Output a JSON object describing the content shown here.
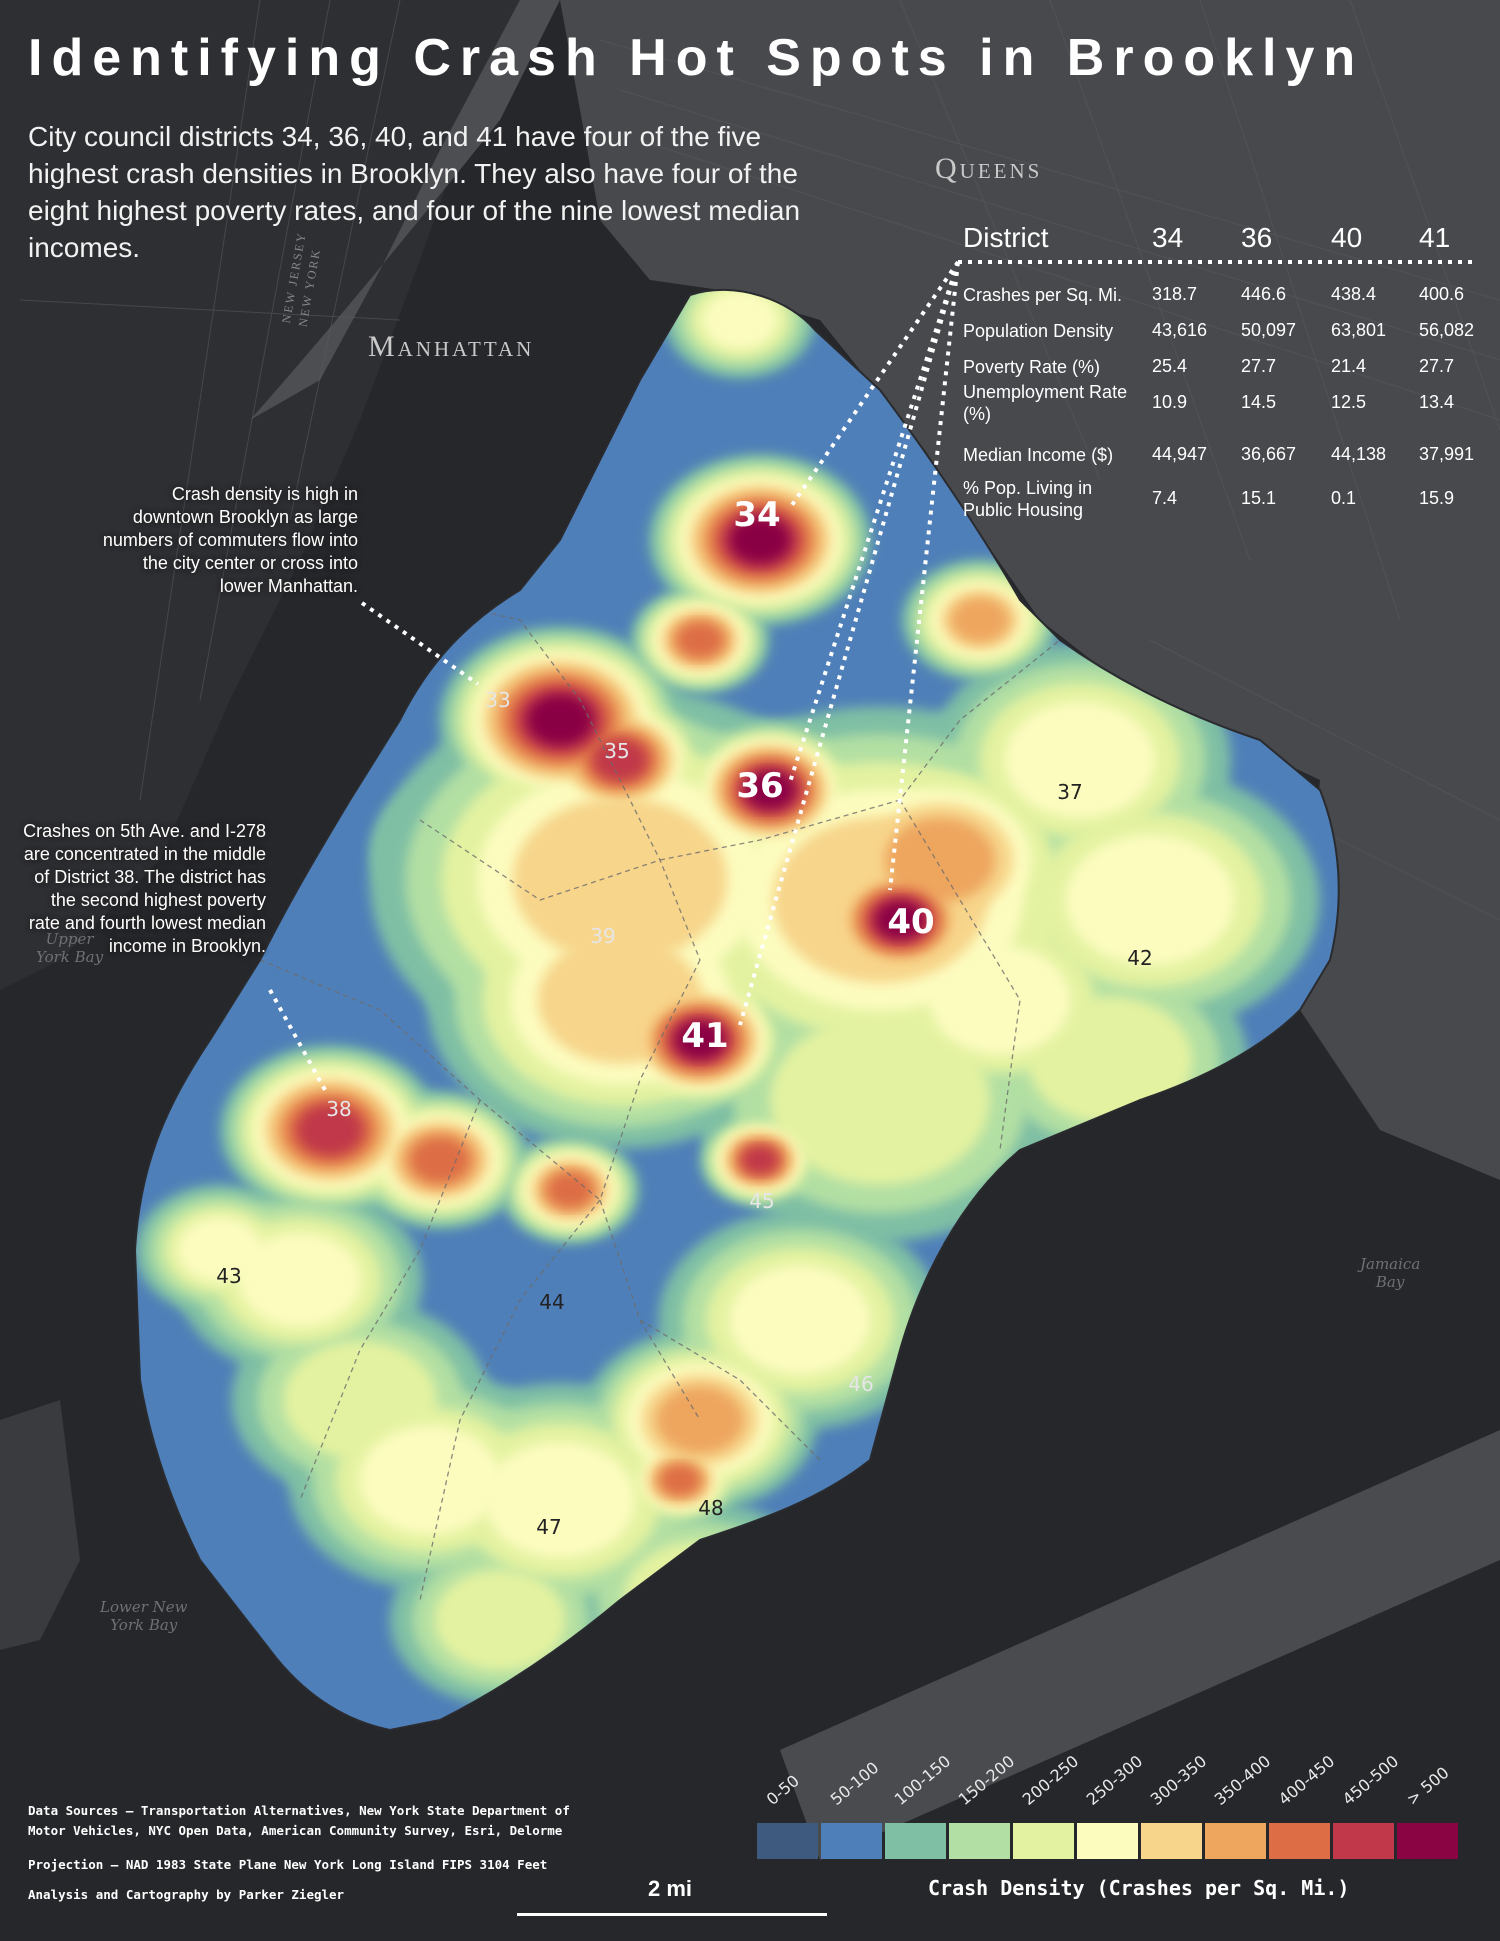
{
  "title": "Identifying Crash Hot Spots in Brooklyn",
  "subtitle": "City council districts 34, 36, 40, and 41 have four of the five highest crash densities in Brooklyn. They also have four of the eight highest poverty rates, and four of the nine lowest median incomes.",
  "places": {
    "queens": "Queens",
    "manhattan": "Manhattan",
    "new_jersey": "NEW JERSEY",
    "new_york": "NEW YORK",
    "upper_bay": "Upper\nYork Bay",
    "lower_bay": "Lower New\nYork Bay",
    "jamaica_bay": "Jamaica\nBay",
    "queens_top": "Queens"
  },
  "annotations": {
    "downtown": "Crash density is high in downtown Brooklyn as large numbers of commuters flow into the city center or cross into lower Manhattan.",
    "district38": "Crashes on 5th Ave. and I-278 are concentrated in the middle of District 38. The district has the second highest poverty rate and fourth lowest median income in Brooklyn."
  },
  "district_labels": {
    "big": [
      "34",
      "36",
      "40",
      "41"
    ],
    "small": [
      "33",
      "35",
      "37",
      "38",
      "39",
      "42",
      "43",
      "44",
      "45",
      "46",
      "47",
      "48"
    ]
  },
  "stats_table": {
    "header": [
      "District",
      "34",
      "36",
      "40",
      "41"
    ],
    "rows": [
      {
        "label": "Crashes per Sq. Mi.",
        "values": [
          "318.7",
          "446.6",
          "438.4",
          "400.6"
        ]
      },
      {
        "label": "Population Density",
        "values": [
          "43,616",
          "50,097",
          "63,801",
          "56,082"
        ]
      },
      {
        "label": "Poverty Rate (%)",
        "values": [
          "25.4",
          "27.7",
          "21.4",
          "27.7"
        ]
      },
      {
        "label": "Unemployment Rate (%)",
        "values": [
          "10.9",
          "14.5",
          "12.5",
          "13.4"
        ]
      },
      {
        "label": "Median Income ($)",
        "values": [
          "44,947",
          "36,667",
          "44,138",
          "37,991"
        ]
      },
      {
        "label": "% Pop. Living in Public Housing",
        "values": [
          "7.4",
          "15.1",
          "0.1",
          "15.9"
        ]
      }
    ]
  },
  "legend": {
    "title": "Crash Density (Crashes per Sq. Mi.)",
    "classes": [
      {
        "label": "0-50",
        "color": "#3e5a7e"
      },
      {
        "label": "50-100",
        "color": "#4f7fb8"
      },
      {
        "label": "100-150",
        "color": "#7fbfa4"
      },
      {
        "label": "150-200",
        "color": "#b2dfa3"
      },
      {
        "label": "200-250",
        "color": "#e3f2a0"
      },
      {
        "label": "250-300",
        "color": "#fcfcbf"
      },
      {
        "label": "300-350",
        "color": "#f7d58b"
      },
      {
        "label": "350-400",
        "color": "#eea65e"
      },
      {
        "label": "400-450",
        "color": "#dd6d45"
      },
      {
        "label": "450-500",
        "color": "#c0384a"
      },
      {
        "label": "> 500",
        "color": "#8a0444"
      }
    ]
  },
  "scale_bar": "2 mi",
  "sources": {
    "data": "Data Sources – Transportation Alternatives, New York State Department of\nMotor Vehicles, NYC Open Data, American Community Survey, Esri, Delorme",
    "projection": "Projection – NAD 1983 State Plane New York Long Island FIPS 3104 Feet",
    "credit": "Analysis and Cartography by Parker Ziegler"
  }
}
